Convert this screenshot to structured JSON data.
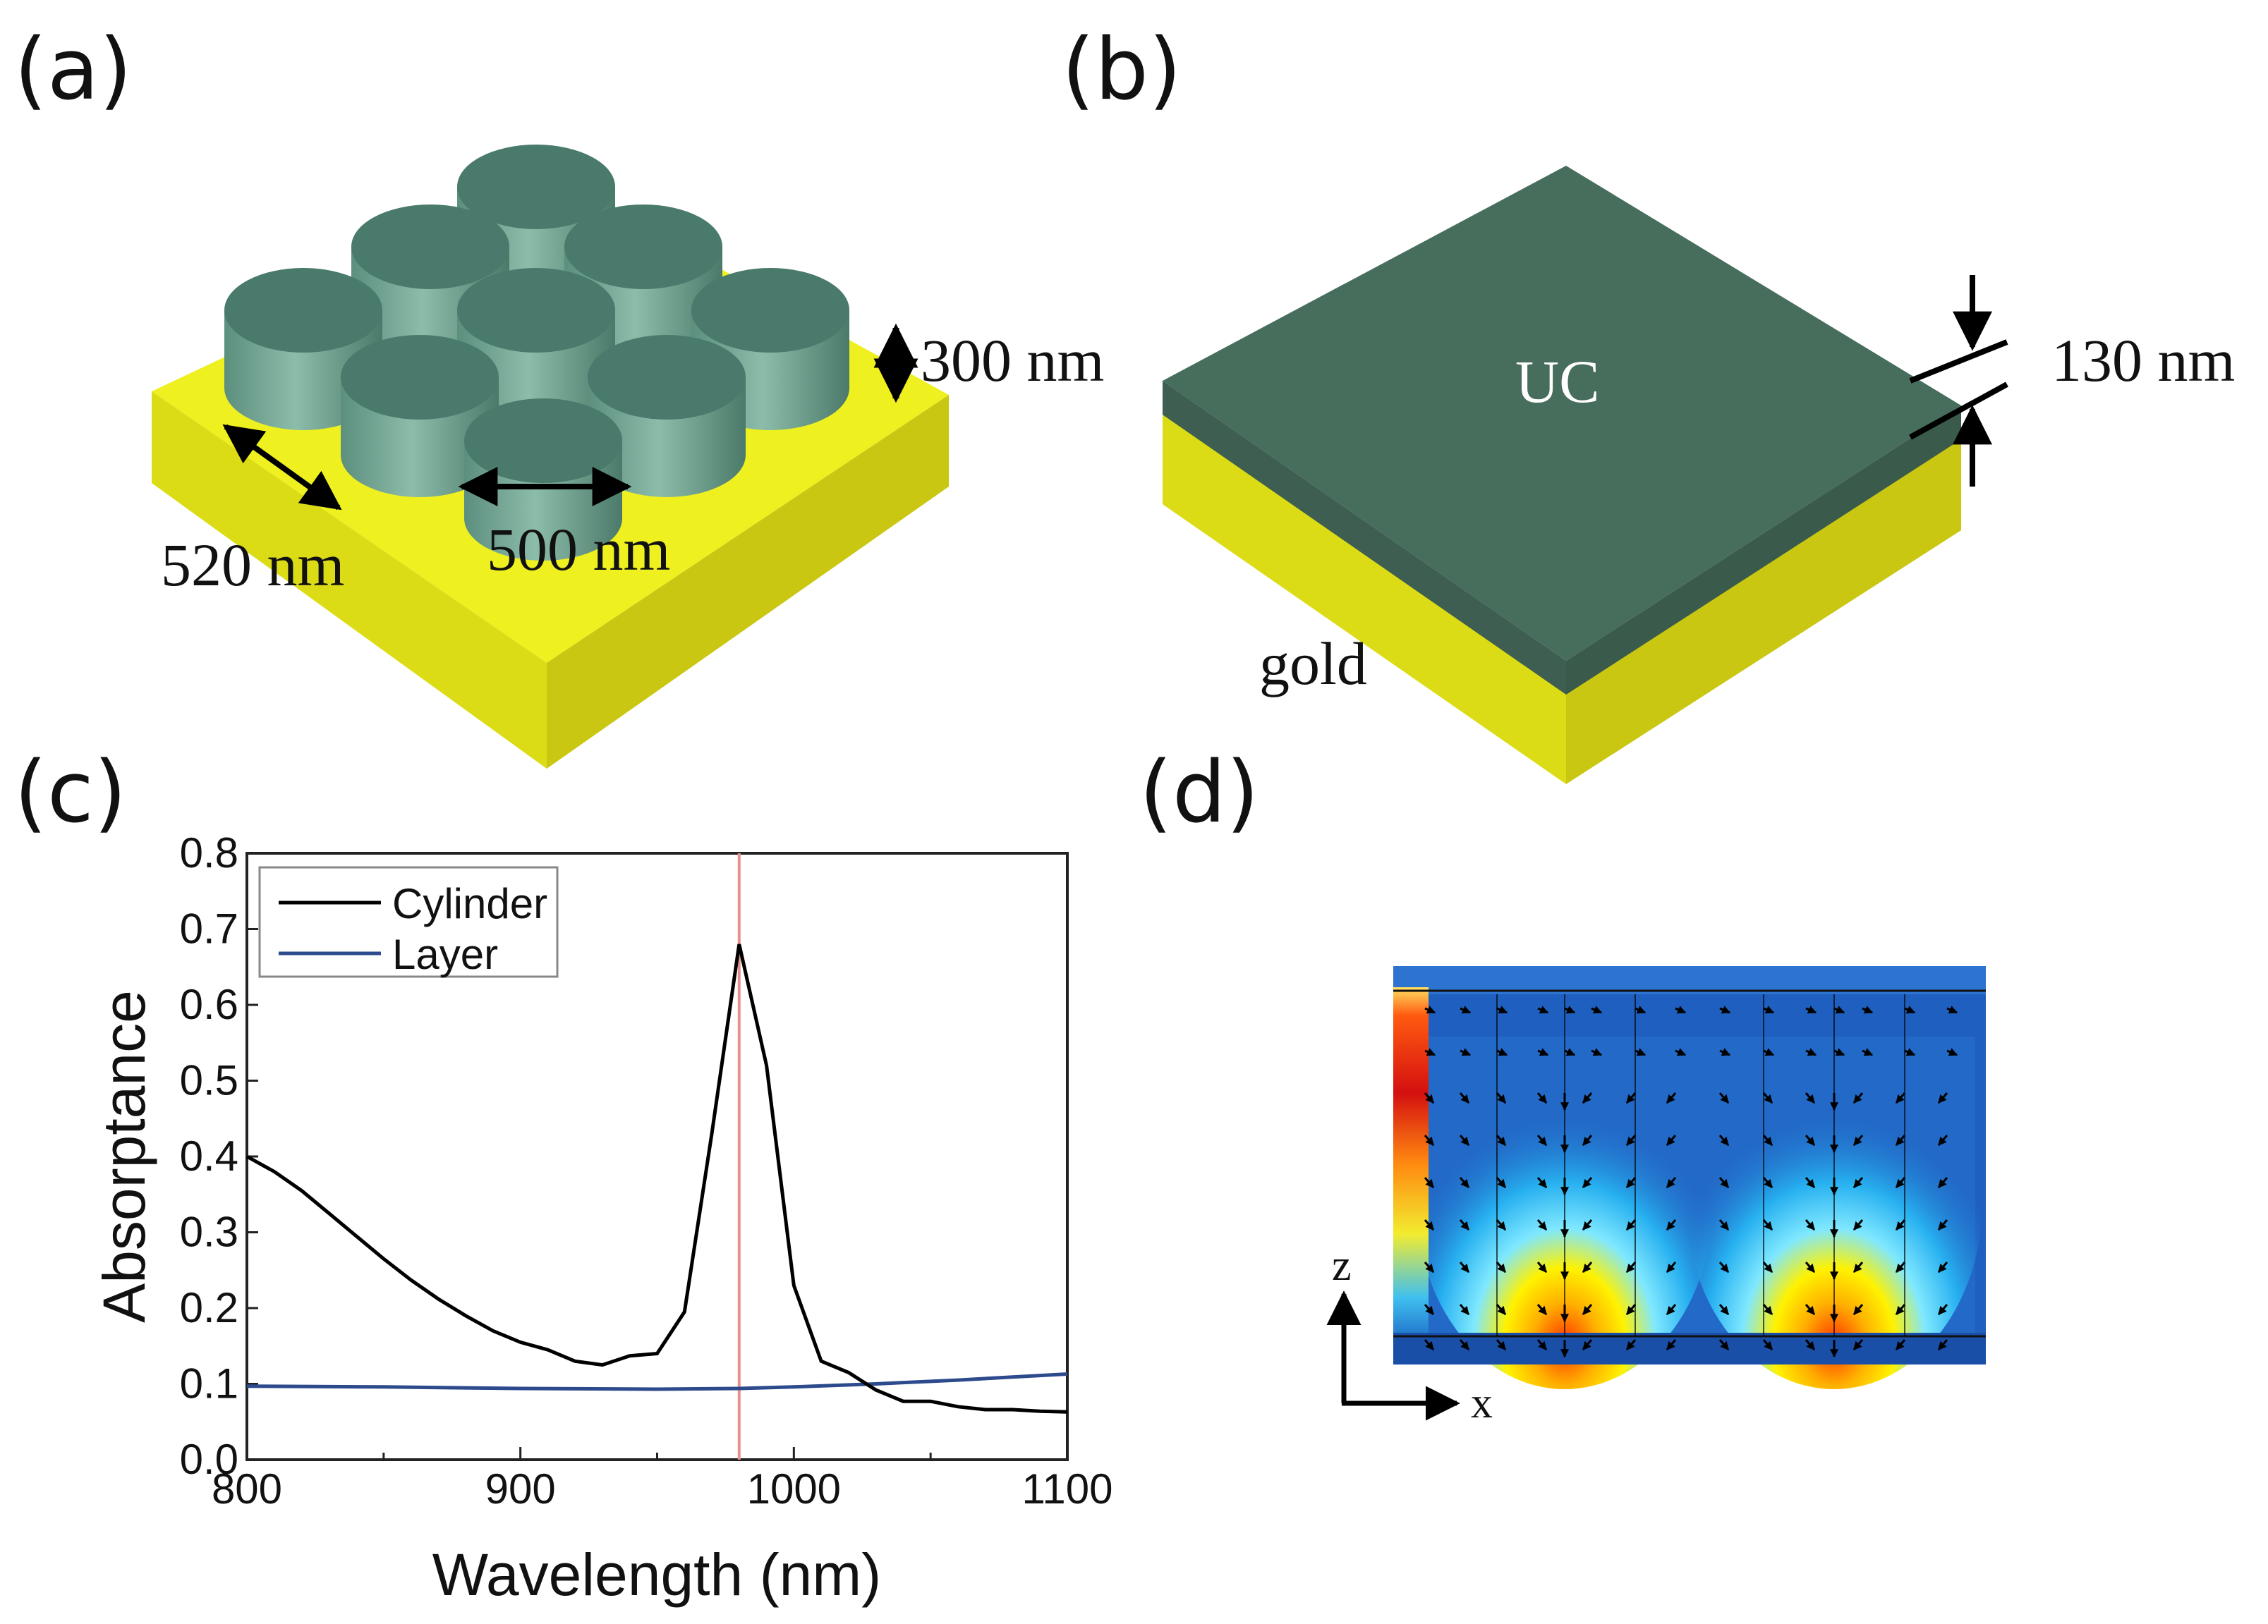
{
  "figure": {
    "panel_labels": [
      "(a)",
      "(b)",
      "(c)",
      "(d)"
    ],
    "colors": {
      "gold_top": "#eef020",
      "gold_front": "#dcdc16",
      "gold_side": "#c9c712",
      "uc_top": "#476d5d",
      "uc_side": "#3d5e50",
      "cylinder_top": "#4a7a6b",
      "cylinder_body": "#6c9e8c",
      "red_marker": "#e8908a",
      "layer_line": "#2c4a8c"
    }
  },
  "panel_a": {
    "height_label": "300 nm",
    "period_label": "520 nm",
    "diameter_label": "500 nm"
  },
  "panel_b": {
    "uc_label": "UC",
    "thickness_label": "130 nm",
    "gold_label": "gold"
  },
  "panel_d": {
    "z_axis_label": "z",
    "x_axis_label": "x"
  },
  "chart_data": {
    "type": "line",
    "xlabel": "Wavelength (nm)",
    "ylabel": "Absorptance",
    "xlim": [
      800,
      1100
    ],
    "ylim": [
      0.0,
      0.8
    ],
    "x_ticks": [
      800,
      900,
      1000,
      1100
    ],
    "y_ticks": [
      0.0,
      0.1,
      0.2,
      0.3,
      0.4,
      0.5,
      0.6,
      0.7,
      0.8
    ],
    "y_tick_labels": [
      "0.0",
      "0.1",
      "0.2",
      "0.3",
      "0.4",
      "0.5",
      "0.6",
      "0.7",
      "0.8"
    ],
    "legend_position": "top-left",
    "vertical_marker_x": 980,
    "series": [
      {
        "name": "Cylinder",
        "color": "#000000",
        "x": [
          800,
          810,
          820,
          830,
          840,
          850,
          860,
          870,
          880,
          890,
          900,
          910,
          920,
          930,
          940,
          950,
          960,
          970,
          980,
          990,
          1000,
          1010,
          1020,
          1030,
          1040,
          1050,
          1060,
          1070,
          1080,
          1090,
          1100
        ],
        "y": [
          0.4,
          0.38,
          0.355,
          0.325,
          0.295,
          0.265,
          0.237,
          0.212,
          0.19,
          0.17,
          0.155,
          0.145,
          0.13,
          0.125,
          0.137,
          0.14,
          0.195,
          0.43,
          0.68,
          0.52,
          0.23,
          0.13,
          0.115,
          0.092,
          0.077,
          0.077,
          0.07,
          0.066,
          0.066,
          0.064,
          0.063
        ]
      },
      {
        "name": "Layer",
        "color": "#2c4a8c",
        "x": [
          800,
          850,
          900,
          950,
          980,
          1000,
          1030,
          1060,
          1100
        ],
        "y": [
          0.097,
          0.096,
          0.094,
          0.093,
          0.094,
          0.096,
          0.1,
          0.105,
          0.113
        ]
      }
    ]
  }
}
